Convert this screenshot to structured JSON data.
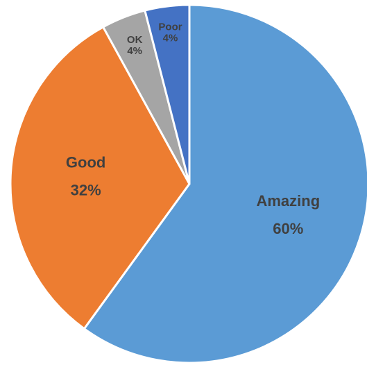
{
  "chart_data": {
    "type": "pie",
    "title": "",
    "start_angle_deg": 0,
    "direction": "clockwise",
    "slices": [
      {
        "label": "Amazing",
        "percent_label": "60%",
        "value": 60,
        "color": "#5B9BD5",
        "text_color": "#404040"
      },
      {
        "label": "Good",
        "percent_label": "32%",
        "value": 32,
        "color": "#ED7D31",
        "text_color": "#404040"
      },
      {
        "label": "OK",
        "percent_label": "4%",
        "value": 4,
        "color": "#A5A5A5",
        "text_color": "#404040"
      },
      {
        "label": "Poor",
        "percent_label": "4%",
        "value": 4,
        "color": "#4472C4",
        "text_color": "#404040"
      }
    ]
  }
}
